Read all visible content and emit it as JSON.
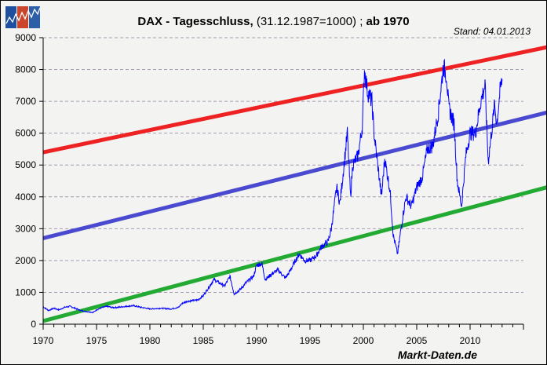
{
  "chart_data": {
    "type": "line",
    "title_bold": "DAX - Tagesschluss,",
    "title_normal": " (31.12.1987=1000) ; ",
    "title_suffix": "ab 1970",
    "stand": "Stand: 04.01.2013",
    "source": "Markt-Daten.de",
    "xlim": [
      1970,
      2015
    ],
    "ylim": [
      0,
      9000
    ],
    "xticks": [
      1970,
      1975,
      1980,
      1985,
      1990,
      1995,
      2000,
      2005,
      2010
    ],
    "yticks": [
      0,
      1000,
      2000,
      3000,
      4000,
      5000,
      6000,
      7000,
      8000,
      9000
    ],
    "grid": "horizontal dashed",
    "colors": {
      "dax": "#0000ff",
      "upper": "#ee2222",
      "middle": "#4a4ad0",
      "lower": "#22aa33"
    },
    "trend_lines": [
      {
        "name": "upper",
        "points": [
          [
            1970,
            5400
          ],
          [
            2017.2,
            8700
          ]
        ]
      },
      {
        "name": "middle",
        "points": [
          [
            1970,
            2700
          ],
          [
            2017.2,
            6650
          ]
        ]
      },
      {
        "name": "lower",
        "points": [
          [
            1970,
            100
          ],
          [
            2017.2,
            4300
          ]
        ]
      }
    ],
    "series": [
      {
        "name": "DAX",
        "points": [
          [
            1970,
            550
          ],
          [
            1970.5,
            430
          ],
          [
            1971,
            500
          ],
          [
            1971.5,
            450
          ],
          [
            1972,
            530
          ],
          [
            1972.5,
            560
          ],
          [
            1973,
            500
          ],
          [
            1973.5,
            430
          ],
          [
            1974,
            400
          ],
          [
            1974.7,
            370
          ],
          [
            1975,
            450
          ],
          [
            1975.5,
            520
          ],
          [
            1976,
            560
          ],
          [
            1976.5,
            520
          ],
          [
            1977,
            530
          ],
          [
            1978,
            570
          ],
          [
            1978.5,
            580
          ],
          [
            1979,
            540
          ],
          [
            1980,
            480
          ],
          [
            1981,
            500
          ],
          [
            1982,
            480
          ],
          [
            1982.7,
            530
          ],
          [
            1983,
            650
          ],
          [
            1983.5,
            720
          ],
          [
            1984,
            740
          ],
          [
            1984.5,
            760
          ],
          [
            1985,
            900
          ],
          [
            1985.5,
            1150
          ],
          [
            1986,
            1400
          ],
          [
            1986.5,
            1300
          ],
          [
            1987,
            1200
          ],
          [
            1987.5,
            1500
          ],
          [
            1987.9,
            950
          ],
          [
            1988.5,
            1100
          ],
          [
            1989,
            1300
          ],
          [
            1989.7,
            1500
          ],
          [
            1990,
            1850
          ],
          [
            1990.5,
            1900
          ],
          [
            1990.8,
            1400
          ],
          [
            1991.5,
            1600
          ],
          [
            1992,
            1700
          ],
          [
            1992.7,
            1450
          ],
          [
            1993,
            1600
          ],
          [
            1993.8,
            2100
          ],
          [
            1994,
            2200
          ],
          [
            1994.5,
            2000
          ],
          [
            1995,
            2000
          ],
          [
            1995.6,
            2150
          ],
          [
            1996,
            2400
          ],
          [
            1996.7,
            2600
          ],
          [
            1997,
            3000
          ],
          [
            1997.5,
            4300
          ],
          [
            1997.8,
            3800
          ],
          [
            1998,
            4400
          ],
          [
            1998.5,
            6000
          ],
          [
            1998.8,
            4000
          ],
          [
            1999,
            5000
          ],
          [
            1999.5,
            5300
          ],
          [
            1999.9,
            6200
          ],
          [
            2000.1,
            8000
          ],
          [
            2000.4,
            7300
          ],
          [
            2000.8,
            7000
          ],
          [
            2001,
            6000
          ],
          [
            2001.7,
            4000
          ],
          [
            2002,
            5200
          ],
          [
            2002.5,
            4200
          ],
          [
            2002.8,
            2800
          ],
          [
            2003.2,
            2200
          ],
          [
            2003.7,
            3400
          ],
          [
            2004,
            4000
          ],
          [
            2004.5,
            3700
          ],
          [
            2005,
            4300
          ],
          [
            2005.5,
            4600
          ],
          [
            2006,
            5500
          ],
          [
            2006.5,
            5600
          ],
          [
            2007,
            6600
          ],
          [
            2007.5,
            8100
          ],
          [
            2007.8,
            7800
          ],
          [
            2008,
            6800
          ],
          [
            2008.5,
            6300
          ],
          [
            2008.8,
            4500
          ],
          [
            2009.2,
            3700
          ],
          [
            2009.6,
            5300
          ],
          [
            2010,
            6000
          ],
          [
            2010.5,
            6000
          ],
          [
            2011,
            7000
          ],
          [
            2011.4,
            7500
          ],
          [
            2011.7,
            5100
          ],
          [
            2012,
            6000
          ],
          [
            2012.3,
            6900
          ],
          [
            2012.5,
            6300
          ],
          [
            2012.8,
            7300
          ],
          [
            2013,
            7700
          ]
        ]
      }
    ]
  }
}
